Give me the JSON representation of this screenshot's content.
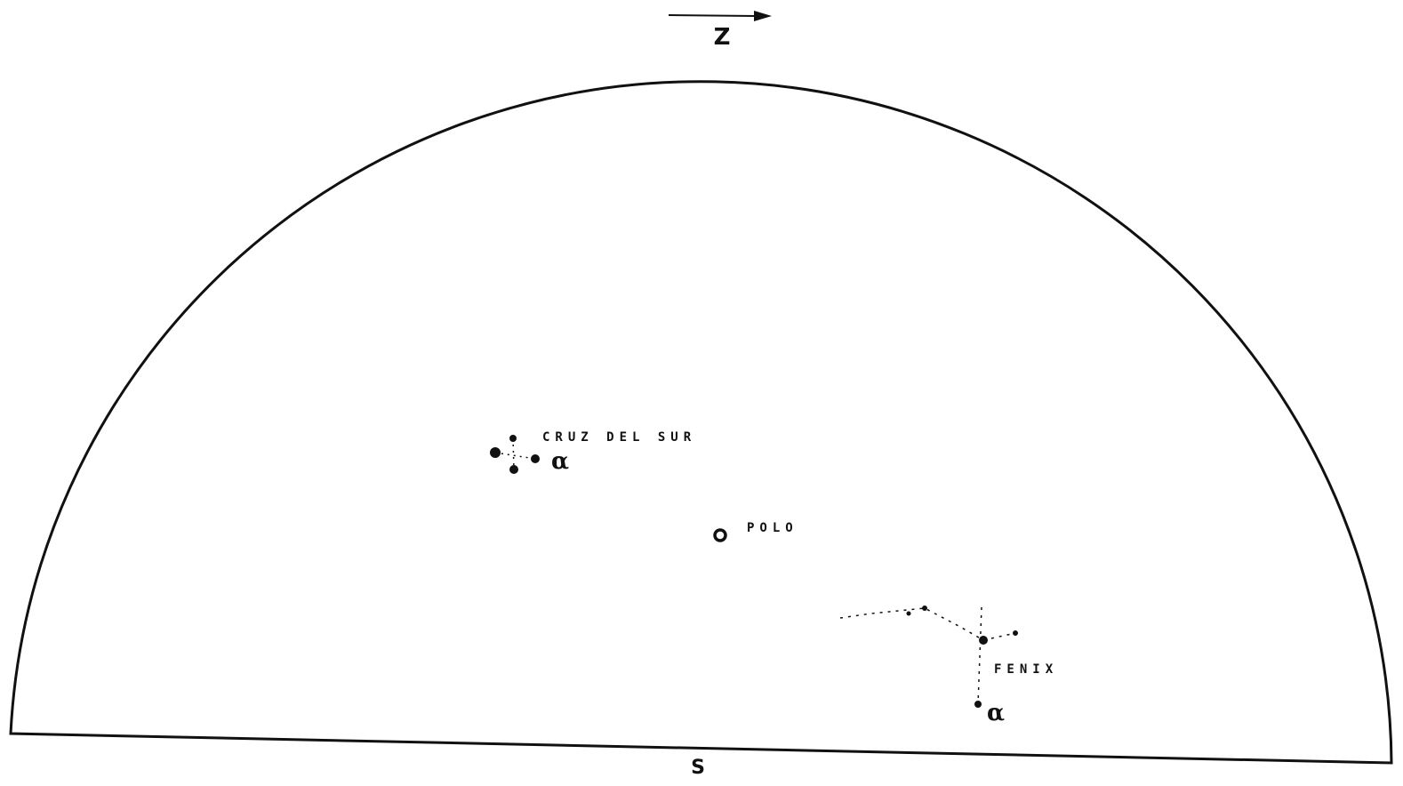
{
  "top_label": "Z",
  "bottom_label": "S",
  "constellations": [
    {
      "name": "CRUZ DEL SUR",
      "star_label": "α"
    },
    {
      "name": "FENIX",
      "star_label": "α"
    }
  ],
  "pole_label": "POLO"
}
